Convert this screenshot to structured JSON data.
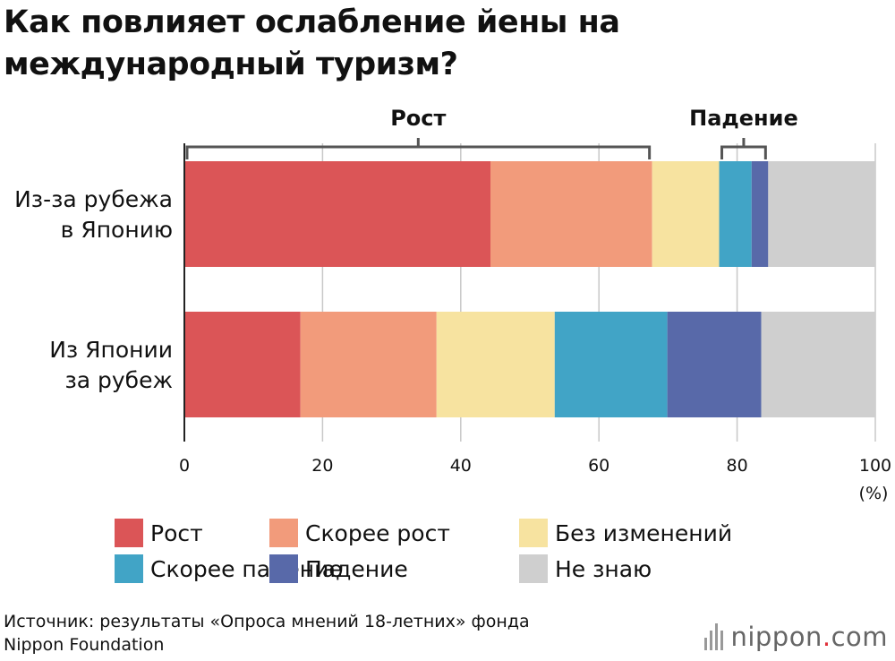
{
  "title": {
    "line1": "Как повлияет ослабление йены на",
    "line2": "международный туризм?"
  },
  "chart_data": {
    "type": "bar",
    "orientation": "horizontal",
    "stacked": true,
    "categories": [
      "Из-за рубежа\nв Японию",
      "Из Японии\nза рубеж"
    ],
    "series": [
      {
        "name": "Рост",
        "color": "#db5557",
        "values": [
          44.3,
          16.8
        ]
      },
      {
        "name": "Скорее рост",
        "color": "#f29b7b",
        "values": [
          23.4,
          19.7
        ]
      },
      {
        "name": "Без изменений",
        "color": "#f7e3a0",
        "values": [
          9.7,
          17.1
        ]
      },
      {
        "name": "Скорее падение",
        "color": "#41a4c6",
        "values": [
          4.7,
          16.3
        ]
      },
      {
        "name": "Падение",
        "color": "#5869a9",
        "values": [
          2.4,
          13.6
        ]
      },
      {
        "name": "Не знаю",
        "color": "#cfcfcf",
        "values": [
          15.5,
          16.5
        ]
      }
    ],
    "xlim": [
      0,
      100
    ],
    "xticks": [
      0,
      20,
      40,
      60,
      80,
      100
    ],
    "xunit": "(%)",
    "grid": true,
    "brackets": [
      {
        "label": "Рост",
        "from": 0,
        "to": 67.7
      },
      {
        "label": "Падение",
        "from": 77.4,
        "to": 84.5
      }
    ]
  },
  "source": {
    "line1": "Источник: результаты «Опроса мнений 18-летних» фонда",
    "line2": "Nippon Foundation"
  },
  "logo": {
    "text": "nippon",
    "dot": ".",
    "suffix": "com"
  }
}
